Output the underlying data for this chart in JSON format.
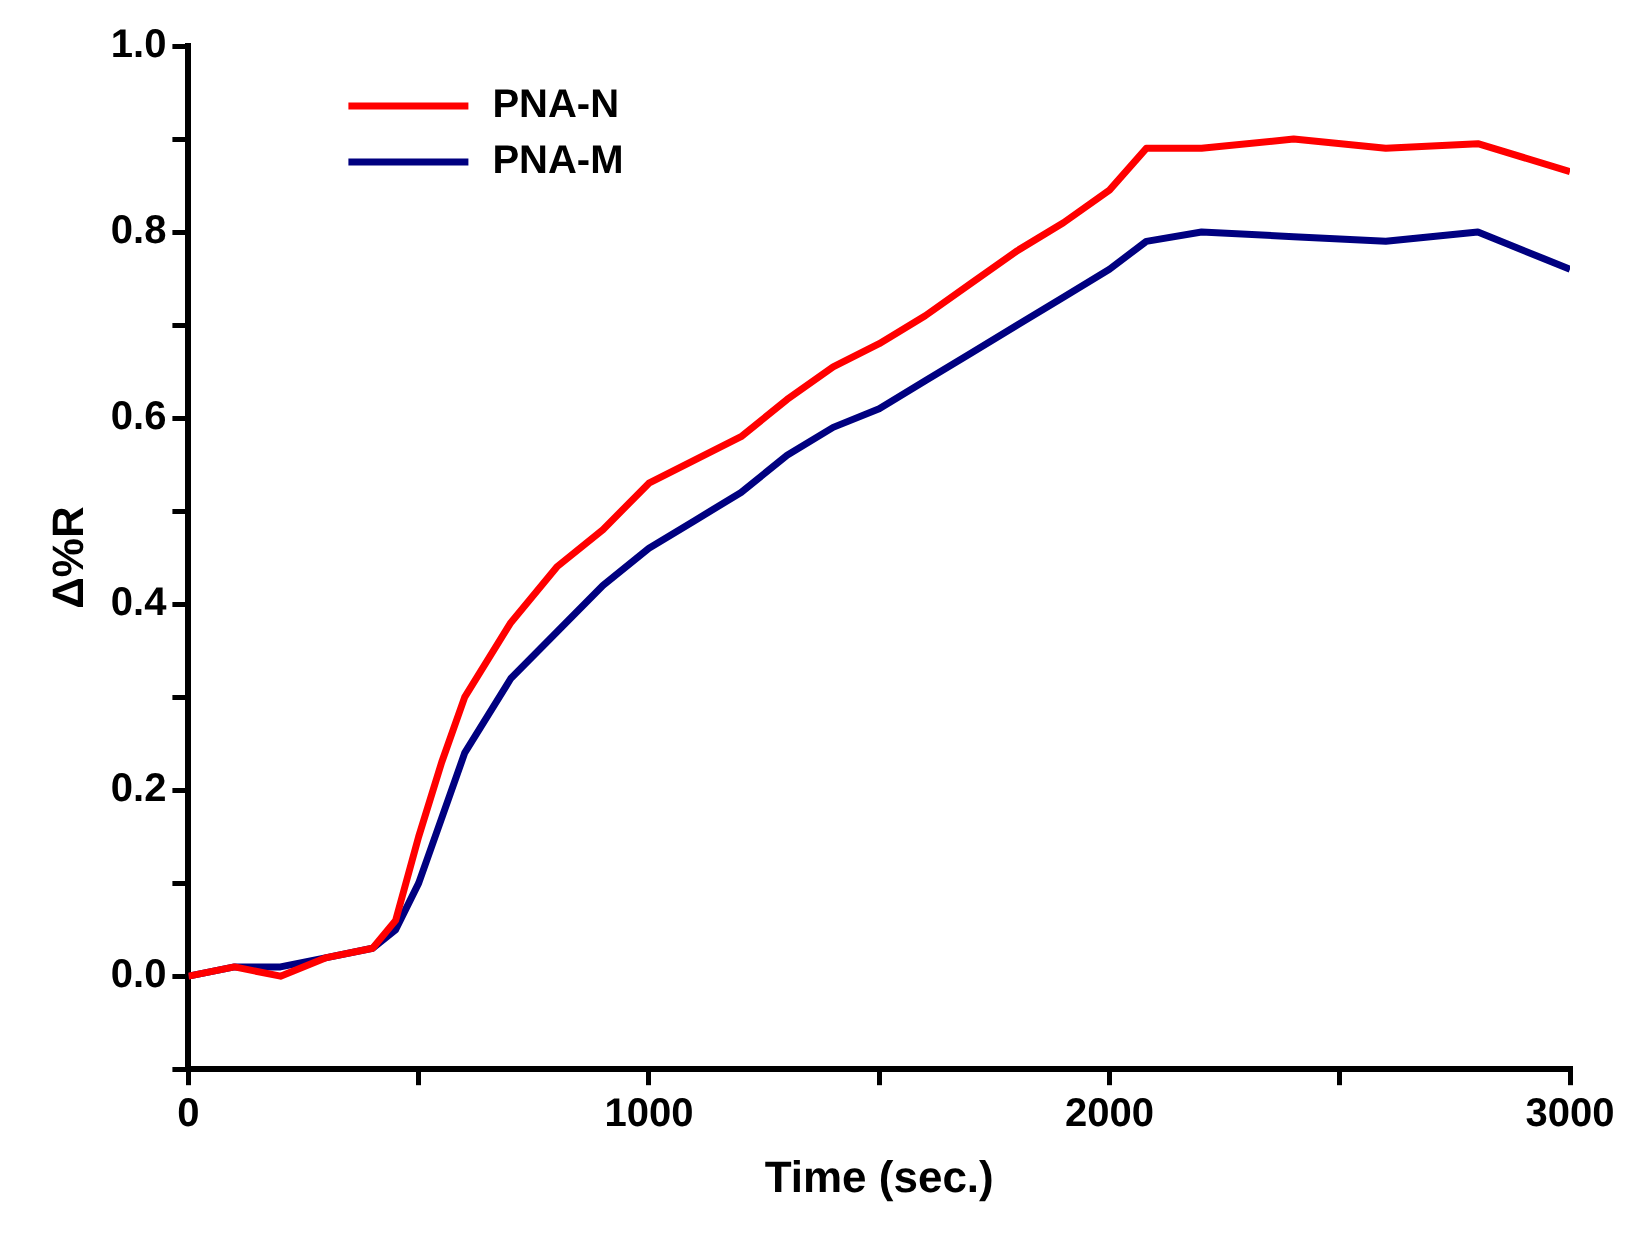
{
  "chart_data": {
    "type": "line",
    "xlabel": "Time (sec.)",
    "ylabel": "Δ%R",
    "xlim": [
      0,
      3000
    ],
    "ylim": [
      -0.1,
      1.0
    ],
    "xticks": [
      0,
      {
        "value": 500,
        "label": null
      },
      1000,
      {
        "value": 1500,
        "label": null
      },
      2000,
      {
        "value": 2500,
        "label": null
      },
      3000
    ],
    "yticks": [
      {
        "value": -0.1,
        "label": null
      },
      {
        "value": 0,
        "label": "0.0"
      },
      {
        "value": 0.1,
        "label": null
      },
      0.2,
      {
        "value": 0.3,
        "label": null
      },
      0.4,
      {
        "value": 0.5,
        "label": null
      },
      0.6,
      {
        "value": 0.7,
        "label": null
      },
      0.8,
      {
        "value": 0.9,
        "label": null
      },
      {
        "value": 1,
        "label": "1.0"
      }
    ],
    "grid": false,
    "legend": "top left",
    "marker": "none",
    "line_style": "solid",
    "x": [
      0,
      100,
      200,
      300,
      400,
      450,
      500,
      550,
      600,
      700,
      800,
      900,
      1000,
      1100,
      1200,
      1300,
      1400,
      1500,
      1600,
      1700,
      1800,
      1900,
      2000,
      2080,
      2200,
      2400,
      2600,
      2800,
      3000
    ],
    "series": [
      {
        "name": "PNA-N",
        "color": "#ff0000",
        "values": [
          0.0,
          0.01,
          0.0,
          0.02,
          0.03,
          0.06,
          0.15,
          0.23,
          0.3,
          0.38,
          0.44,
          0.48,
          0.53,
          0.555,
          0.58,
          0.62,
          0.655,
          0.68,
          0.71,
          0.745,
          0.78,
          0.81,
          0.845,
          0.89,
          0.89,
          0.9,
          0.89,
          0.895,
          0.865
        ]
      },
      {
        "name": "PNA-M",
        "color": "#000080",
        "values": [
          0.0,
          0.01,
          0.01,
          0.02,
          0.03,
          0.05,
          0.1,
          0.17,
          0.24,
          0.32,
          0.37,
          0.42,
          0.46,
          0.49,
          0.52,
          0.56,
          0.59,
          0.61,
          0.64,
          0.67,
          0.7,
          0.73,
          0.76,
          0.79,
          0.8,
          0.795,
          0.79,
          0.8,
          0.76
        ]
      }
    ]
  }
}
